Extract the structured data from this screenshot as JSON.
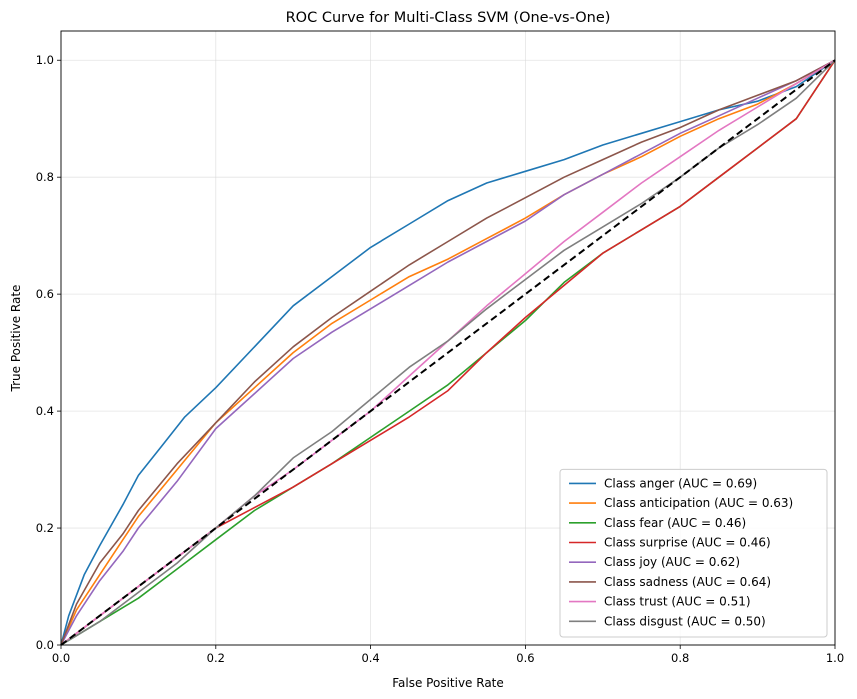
{
  "chart_data": {
    "type": "line",
    "title": "ROC Curve for Multi-Class SVM (One-vs-One)",
    "xlabel": "False Positive Rate",
    "ylabel": "True Positive Rate",
    "xlim": [
      0,
      1
    ],
    "ylim": [
      0,
      1.05
    ],
    "xticks": [
      "0.0",
      "0.2",
      "0.4",
      "0.6",
      "0.8",
      "1.0"
    ],
    "yticks": [
      "0.0",
      "0.2",
      "0.4",
      "0.6",
      "0.8",
      "1.0"
    ],
    "grid": true,
    "legend_position": "lower-right",
    "diagonal": {
      "color": "#000000",
      "style": "dashed"
    },
    "series": [
      {
        "name": "Class anger (AUC = 0.69)",
        "color": "#1f77b4",
        "x": [
          0,
          0.01,
          0.03,
          0.05,
          0.08,
          0.1,
          0.13,
          0.16,
          0.2,
          0.25,
          0.3,
          0.35,
          0.4,
          0.45,
          0.5,
          0.55,
          0.6,
          0.65,
          0.7,
          0.75,
          0.8,
          0.85,
          0.9,
          0.95,
          1.0
        ],
        "y": [
          0,
          0.05,
          0.12,
          0.17,
          0.24,
          0.29,
          0.34,
          0.39,
          0.44,
          0.51,
          0.58,
          0.63,
          0.68,
          0.72,
          0.76,
          0.79,
          0.81,
          0.83,
          0.855,
          0.875,
          0.895,
          0.915,
          0.93,
          0.955,
          1.0
        ]
      },
      {
        "name": "Class anticipation (AUC = 0.63)",
        "color": "#ff7f0e",
        "x": [
          0,
          0.02,
          0.05,
          0.08,
          0.1,
          0.15,
          0.2,
          0.25,
          0.3,
          0.35,
          0.4,
          0.45,
          0.5,
          0.55,
          0.6,
          0.65,
          0.7,
          0.75,
          0.8,
          0.85,
          0.9,
          0.95,
          1.0
        ],
        "y": [
          0,
          0.06,
          0.12,
          0.18,
          0.22,
          0.3,
          0.38,
          0.44,
          0.5,
          0.55,
          0.59,
          0.63,
          0.66,
          0.695,
          0.73,
          0.77,
          0.805,
          0.835,
          0.87,
          0.9,
          0.925,
          0.96,
          1.0
        ]
      },
      {
        "name": "Class fear (AUC = 0.46)",
        "color": "#2ca02c",
        "x": [
          0,
          0.05,
          0.1,
          0.15,
          0.2,
          0.25,
          0.3,
          0.35,
          0.4,
          0.45,
          0.5,
          0.55,
          0.6,
          0.65,
          0.7,
          0.75,
          0.8,
          0.85,
          0.9,
          0.95,
          1.0
        ],
        "y": [
          0,
          0.04,
          0.08,
          0.13,
          0.18,
          0.23,
          0.27,
          0.31,
          0.355,
          0.4,
          0.445,
          0.5,
          0.555,
          0.62,
          0.67,
          0.71,
          0.75,
          0.8,
          0.85,
          0.9,
          1.0
        ]
      },
      {
        "name": "Class surprise (AUC = 0.46)",
        "color": "#d62728",
        "x": [
          0,
          0.05,
          0.1,
          0.15,
          0.2,
          0.25,
          0.3,
          0.35,
          0.4,
          0.45,
          0.5,
          0.55,
          0.6,
          0.65,
          0.7,
          0.75,
          0.8,
          0.85,
          0.9,
          0.95,
          1.0
        ],
        "y": [
          0,
          0.05,
          0.1,
          0.15,
          0.2,
          0.235,
          0.27,
          0.31,
          0.35,
          0.39,
          0.435,
          0.5,
          0.56,
          0.615,
          0.67,
          0.71,
          0.75,
          0.8,
          0.85,
          0.9,
          1.0
        ]
      },
      {
        "name": "Class joy (AUC = 0.62)",
        "color": "#9467bd",
        "x": [
          0,
          0.02,
          0.05,
          0.08,
          0.1,
          0.15,
          0.2,
          0.25,
          0.3,
          0.35,
          0.4,
          0.45,
          0.5,
          0.55,
          0.6,
          0.65,
          0.7,
          0.75,
          0.8,
          0.85,
          0.9,
          0.95,
          1.0
        ],
        "y": [
          0,
          0.05,
          0.11,
          0.16,
          0.2,
          0.28,
          0.37,
          0.43,
          0.49,
          0.535,
          0.575,
          0.615,
          0.655,
          0.69,
          0.725,
          0.77,
          0.805,
          0.84,
          0.875,
          0.905,
          0.935,
          0.965,
          1.0
        ]
      },
      {
        "name": "Class sadness (AUC = 0.64)",
        "color": "#8c564b",
        "x": [
          0,
          0.02,
          0.05,
          0.08,
          0.1,
          0.15,
          0.2,
          0.25,
          0.3,
          0.35,
          0.4,
          0.45,
          0.5,
          0.55,
          0.6,
          0.65,
          0.7,
          0.75,
          0.8,
          0.85,
          0.9,
          0.95,
          1.0
        ],
        "y": [
          0,
          0.07,
          0.14,
          0.19,
          0.23,
          0.31,
          0.38,
          0.45,
          0.51,
          0.56,
          0.605,
          0.65,
          0.69,
          0.73,
          0.765,
          0.8,
          0.83,
          0.86,
          0.885,
          0.915,
          0.94,
          0.965,
          1.0
        ]
      },
      {
        "name": "Class trust (AUC = 0.51)",
        "color": "#e377c2",
        "x": [
          0,
          0.05,
          0.1,
          0.15,
          0.2,
          0.25,
          0.3,
          0.35,
          0.4,
          0.45,
          0.5,
          0.55,
          0.6,
          0.65,
          0.7,
          0.75,
          0.8,
          0.85,
          0.9,
          0.95,
          1.0
        ],
        "y": [
          0,
          0.05,
          0.1,
          0.15,
          0.2,
          0.255,
          0.3,
          0.35,
          0.4,
          0.46,
          0.52,
          0.58,
          0.635,
          0.69,
          0.74,
          0.79,
          0.835,
          0.88,
          0.92,
          0.96,
          1.0
        ]
      },
      {
        "name": "Class disgust (AUC = 0.50)",
        "color": "#7f7f7f",
        "x": [
          0,
          0.05,
          0.1,
          0.15,
          0.2,
          0.25,
          0.3,
          0.35,
          0.4,
          0.45,
          0.5,
          0.55,
          0.6,
          0.65,
          0.7,
          0.75,
          0.8,
          0.85,
          0.9,
          0.95,
          1.0
        ],
        "y": [
          0,
          0.04,
          0.09,
          0.14,
          0.2,
          0.255,
          0.32,
          0.365,
          0.42,
          0.475,
          0.52,
          0.575,
          0.625,
          0.675,
          0.715,
          0.755,
          0.8,
          0.85,
          0.89,
          0.935,
          1.0
        ]
      }
    ]
  }
}
